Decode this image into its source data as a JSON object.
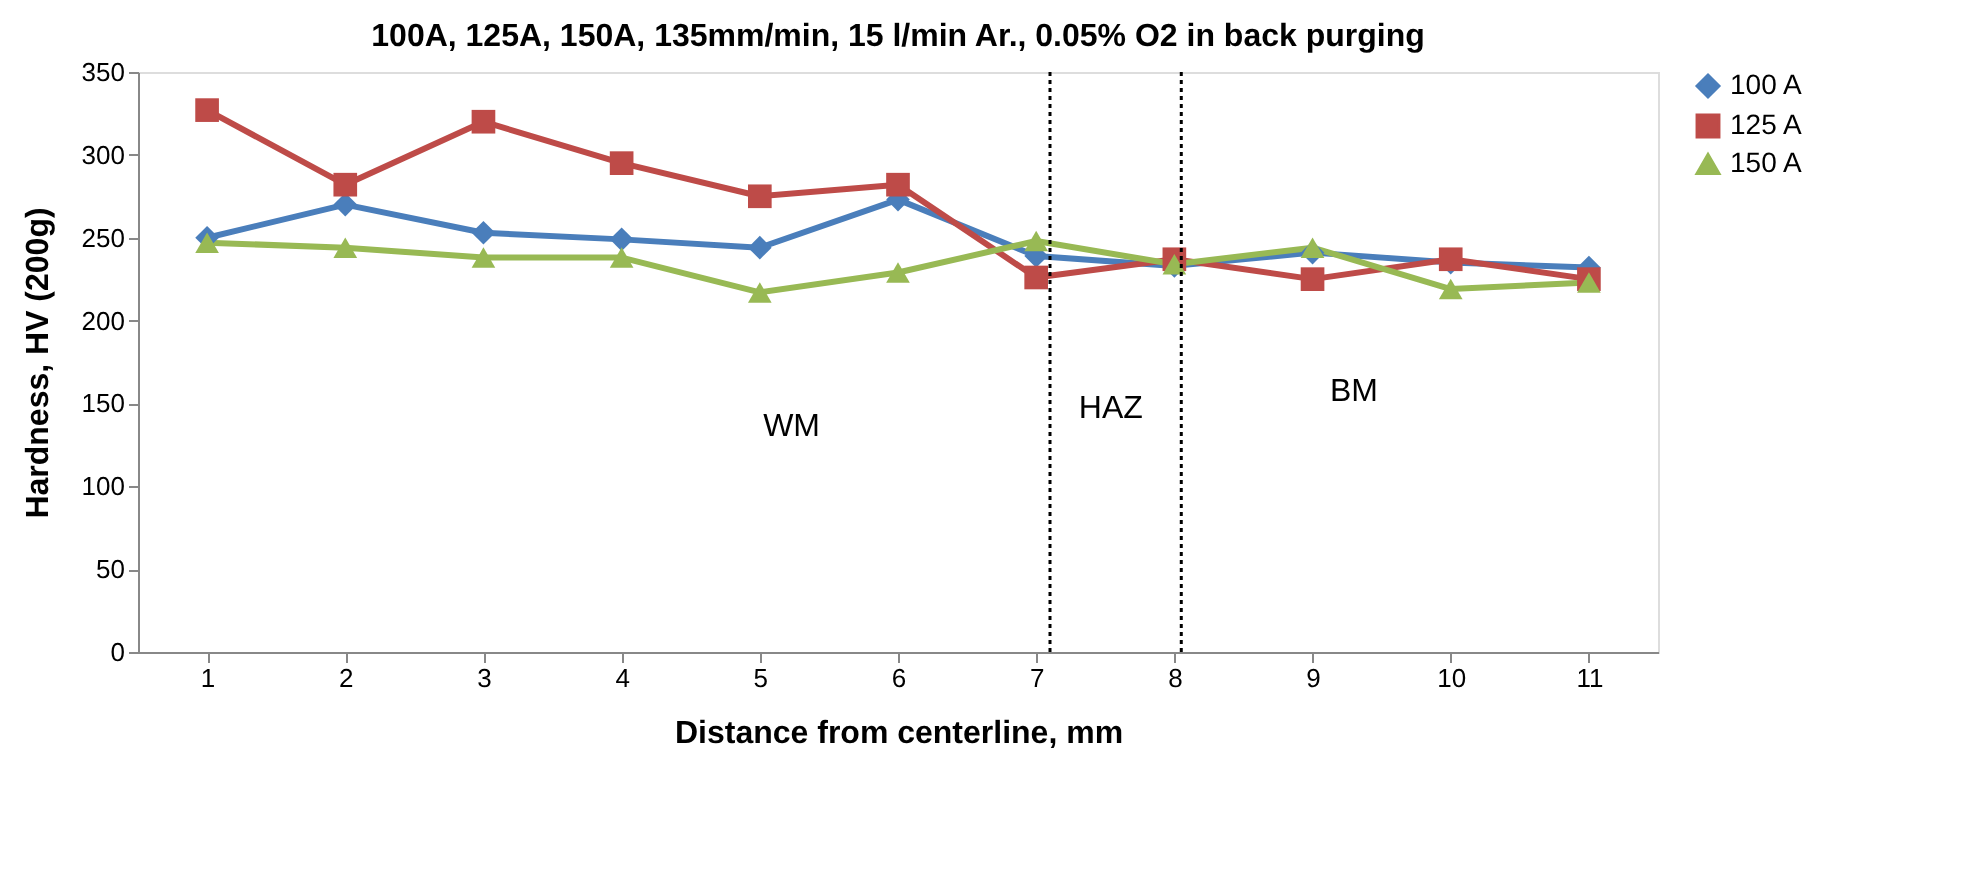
{
  "chart_data": {
    "type": "line",
    "title": "100A, 125A, 150A, 135mm/min, 15 l/min Ar., 0.05% O2 in back purging",
    "xlabel": "Distance from centerline, mm",
    "ylabel": "Hardness, HV (200g)",
    "x": [
      1,
      2,
      3,
      4,
      5,
      6,
      7,
      8,
      9,
      10,
      11
    ],
    "series": [
      {
        "name": "100 A",
        "color": "#4a7ebb",
        "marker": "diamond",
        "values": [
          250,
          270,
          253,
          249,
          244,
          273,
          239,
          233,
          241,
          235,
          232
        ]
      },
      {
        "name": "125 A",
        "color": "#be4b48",
        "marker": "square",
        "values": [
          327,
          282,
          320,
          295,
          275,
          282,
          226,
          237,
          225,
          237,
          225
        ]
      },
      {
        "name": "150 A",
        "color": "#98b954",
        "marker": "triangle",
        "values": [
          247,
          244,
          238,
          238,
          217,
          229,
          248,
          234,
          244,
          219,
          223
        ]
      }
    ],
    "xlim": [
      0.5,
      11.5
    ],
    "xticks": [
      1,
      2,
      3,
      4,
      5,
      6,
      7,
      8,
      9,
      10,
      11
    ],
    "ylim": [
      0,
      350
    ],
    "yticks": [
      0,
      50,
      100,
      150,
      200,
      250,
      300,
      350
    ],
    "ref_lines": [
      {
        "axis": "x",
        "value": 7.1,
        "color": "#000000",
        "line_style": "dotted"
      },
      {
        "axis": "x",
        "value": 8.05,
        "color": "#000000",
        "line_style": "dotted"
      }
    ],
    "annotations": [
      "WM",
      "HAZ",
      "BM"
    ],
    "grid": false,
    "legend": "right",
    "line_style": "solid"
  }
}
